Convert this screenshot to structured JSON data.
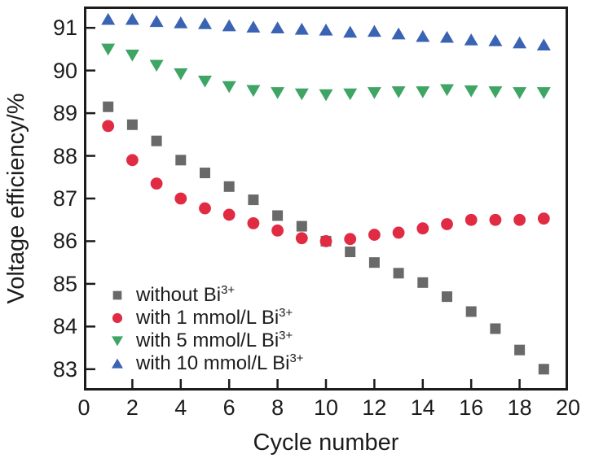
{
  "chart_data": {
    "type": "scatter",
    "title": "",
    "xlabel": "Cycle number",
    "ylabel": "Voltage efficiency/%",
    "xlim": [
      0,
      20
    ],
    "ylim": [
      82.5,
      91.5
    ],
    "x_ticks": [
      0,
      2,
      4,
      6,
      8,
      10,
      12,
      14,
      16,
      18,
      20
    ],
    "y_ticks": [
      83,
      84,
      85,
      86,
      87,
      88,
      89,
      90,
      91
    ],
    "grid": false,
    "legend_position": "inside lower-left",
    "axis_color": "#1c1c1c",
    "x": [
      1,
      2,
      3,
      4,
      5,
      6,
      7,
      8,
      9,
      10,
      11,
      12,
      13,
      14,
      15,
      16,
      17,
      18,
      19
    ],
    "series": [
      {
        "id": "without-bi",
        "name": "without Bi³⁺",
        "legend_label": "without Bi",
        "legend_sup": "3+",
        "marker": "square",
        "color": "#696969",
        "values": [
          89.15,
          88.73,
          88.35,
          87.9,
          87.6,
          87.28,
          86.97,
          86.6,
          86.35,
          86.0,
          85.75,
          85.5,
          85.25,
          85.03,
          84.7,
          84.35,
          83.95,
          83.45,
          83.0
        ]
      },
      {
        "id": "bi-1mmol",
        "name": "with 1 mmol/L Bi³⁺",
        "legend_label": "with 1 mmol/L Bi",
        "legend_sup": "3+",
        "marker": "circle",
        "color": "#e02b43",
        "values": [
          88.7,
          87.9,
          87.35,
          87.0,
          86.77,
          86.62,
          86.42,
          86.25,
          86.07,
          86.0,
          86.05,
          86.15,
          86.2,
          86.3,
          86.4,
          86.5,
          86.5,
          86.5,
          86.53
        ]
      },
      {
        "id": "bi-5mmol",
        "name": "with 5 mmol/L Bi³⁺",
        "legend_label": "with 5 mmol/L Bi",
        "legend_sup": "3+",
        "marker": "triangle-down",
        "color": "#3ea565",
        "values": [
          90.5,
          90.36,
          90.12,
          89.92,
          89.75,
          89.62,
          89.53,
          89.48,
          89.45,
          89.43,
          89.45,
          89.48,
          89.5,
          89.5,
          89.55,
          89.52,
          89.5,
          89.48,
          89.48
        ]
      },
      {
        "id": "bi-10mmol",
        "name": "with 10 mmol/L Bi³⁺",
        "legend_label": "with 10 mmol/L Bi",
        "legend_sup": "3+",
        "marker": "triangle-up",
        "color": "#3a63b3",
        "values": [
          91.2,
          91.2,
          91.15,
          91.12,
          91.1,
          91.05,
          91.02,
          91.0,
          90.97,
          90.95,
          90.9,
          90.92,
          90.86,
          90.8,
          90.78,
          90.72,
          90.7,
          90.65,
          90.6
        ]
      }
    ]
  }
}
